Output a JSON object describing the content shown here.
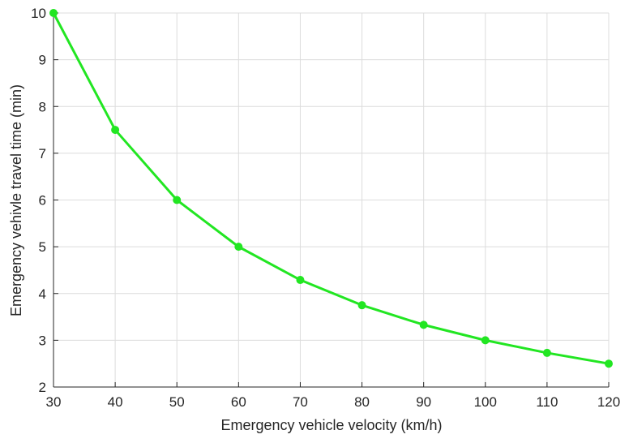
{
  "chart_data": {
    "type": "line",
    "title": "",
    "xlabel": "Emergency vehicle velocity (km/h)",
    "ylabel": "Emergency vehivle travel time  (min)",
    "xlim": [
      30,
      120
    ],
    "ylim": [
      2,
      10
    ],
    "xticks": [
      30,
      40,
      50,
      60,
      70,
      80,
      90,
      100,
      110,
      120
    ],
    "yticks": [
      2,
      3,
      4,
      5,
      6,
      7,
      8,
      9,
      10
    ],
    "grid": true,
    "legend": "none",
    "series": [
      {
        "color": "#22e622",
        "marker": "circle",
        "x": [
          30,
          40,
          50,
          60,
          70,
          80,
          90,
          100,
          110,
          120
        ],
        "y": [
          10,
          7.5,
          6,
          5,
          4.29,
          3.75,
          3.33,
          3,
          2.73,
          2.5
        ]
      }
    ]
  }
}
